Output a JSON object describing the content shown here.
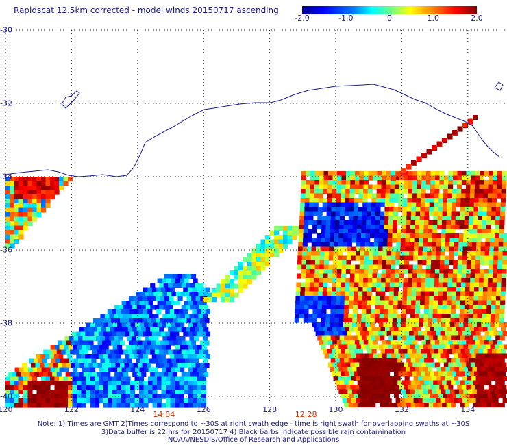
{
  "title": "Rapidscat 12.5km corrected - model winds 20150717 ascending",
  "colorbar": {
    "min": -2.0,
    "max": 2.0,
    "tick_labels": [
      "-2.0",
      "-1.0",
      "0",
      "1.0",
      "2.0"
    ],
    "tick_values": [
      -2.0,
      -1.0,
      0,
      1.0,
      2.0
    ]
  },
  "map": {
    "lon_range": [
      120,
      135
    ],
    "lat_range": [
      -30,
      -40
    ],
    "lon_labels": [
      "120",
      "122",
      "124",
      "126",
      "128",
      "130",
      "132",
      "134"
    ],
    "lon_values": [
      120,
      122,
      124,
      126,
      128,
      130,
      132,
      134
    ],
    "lat_labels": [
      "-30",
      "-32",
      "-34",
      "-36",
      "-38",
      "-40"
    ],
    "lat_values": [
      -30,
      -32,
      -34,
      -36,
      -38,
      -40
    ],
    "grid": "dotted",
    "coastline": "southern Australia"
  },
  "time_labels": [
    {
      "text": "14:04",
      "lon": 124.8
    },
    {
      "text": "12:28",
      "lon": 129.1
    }
  ],
  "notes": [
    "Note: 1) Times are GMT 2)Times correspond to ~30S at right swath edge - time is right swath for overlapping swaths at ~30S",
    "3)Data buffer is 22 hrs for 20150717 4) Black barbs indicate possible rain contamination",
    "NOAA/NESDIS/Office of Research and Applications"
  ],
  "colors": {
    "text": "#1a1a8c",
    "time_text": "#cc3300",
    "coast": "#1a1a8c"
  }
}
